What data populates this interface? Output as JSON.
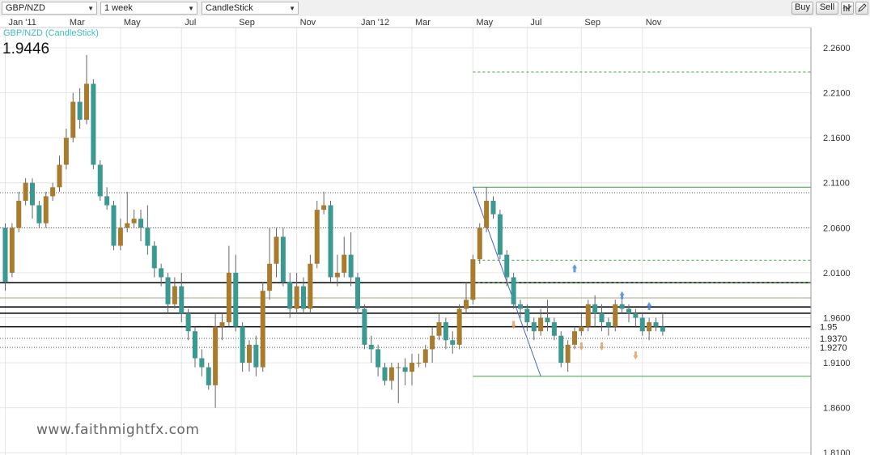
{
  "toolbar": {
    "symbol": "GBP/NZD",
    "period": "1 week",
    "chart_type": "CandleStick",
    "buy_label": "Buy",
    "sell_label": "Sell",
    "indicator_icon": "indicator-icon",
    "draw_icon": "pencil-icon"
  },
  "legend": {
    "series_label": "GBP/NZD (CandleStick)",
    "last_price": "1.9446"
  },
  "watermark": "www.faithmightfx.com",
  "colors": {
    "bull": "#a87c2c",
    "bear": "#3a9a92",
    "legend": "#3bbcc2",
    "grid": "#e6e6e6"
  },
  "chart_data": {
    "type": "candlestick",
    "title": "GBP/NZD (CandleStick)",
    "xlabel": "",
    "ylabel": "",
    "timeframe": "1 week",
    "ylim": [
      1.8075,
      2.2825
    ],
    "y_ticks": [
      "2.2600",
      "2.2100",
      "2.1600",
      "2.1100",
      "2.0600",
      "2.0100",
      "1.9600",
      "1.9100",
      "1.8600",
      "1.8100"
    ],
    "x_tick_labels": [
      "Jan '11",
      "Mar",
      "May",
      "Jul",
      "Sep",
      "Nov",
      "Jan '12",
      "Mar",
      "May",
      "Jul",
      "Sep",
      "Nov"
    ],
    "x_tick_candle_index": [
      0,
      9,
      17,
      26,
      34,
      43,
      52,
      60,
      69,
      77,
      85,
      94
    ],
    "level_labels": [
      "1.95",
      "1.9370",
      "1.9270"
    ],
    "horizontal_levels": [
      {
        "price": 2.099,
        "style": "dotted",
        "color": "#555555"
      },
      {
        "price": 2.06,
        "style": "dotted",
        "color": "#555555"
      },
      {
        "price": 1.999,
        "style": "solid",
        "color": "#000000"
      },
      {
        "price": 1.982,
        "style": "solid",
        "color": "#c8c0a8"
      },
      {
        "price": 1.972,
        "style": "solid",
        "color": "#000000"
      },
      {
        "price": 1.965,
        "style": "solid",
        "color": "#000000"
      },
      {
        "price": 1.95,
        "style": "solid",
        "color": "#000000"
      },
      {
        "price": 1.937,
        "style": "dotted",
        "color": "#555555"
      },
      {
        "price": 1.927,
        "style": "dotted",
        "color": "#555555"
      }
    ],
    "fib_lines": [
      {
        "price": 2.233,
        "style": "dashed",
        "color": "#33aa33"
      },
      {
        "price": 2.105,
        "style": "solid",
        "color": "#33aa33"
      },
      {
        "price": 2.024,
        "style": "dashed",
        "color": "#33aa33"
      },
      {
        "price": 1.999,
        "style": "dashed",
        "color": "#33aa33"
      },
      {
        "price": 1.895,
        "style": "solid",
        "color": "#33aa33"
      }
    ],
    "trendline": {
      "from_index": 69,
      "from_price": 2.105,
      "to_index": 79,
      "to_price": 1.895,
      "color": "#4466cc"
    },
    "arrow_markers": [
      {
        "index": 84,
        "price": 2.015,
        "direction": "up",
        "color": "#4488dd"
      },
      {
        "index": 91,
        "price": 1.985,
        "direction": "up",
        "color": "#4488dd"
      },
      {
        "index": 95,
        "price": 1.973,
        "direction": "up",
        "color": "#4488dd"
      },
      {
        "index": 75,
        "price": 1.952,
        "direction": "down",
        "color": "#e0a060"
      },
      {
        "index": 85,
        "price": 1.928,
        "direction": "down",
        "color": "#e0a060"
      },
      {
        "index": 88,
        "price": 1.928,
        "direction": "down",
        "color": "#e0a060"
      },
      {
        "index": 93,
        "price": 1.918,
        "direction": "down",
        "color": "#e0a060"
      }
    ],
    "candles": [
      [
        2.06,
        2.0,
        2.065,
        1.99
      ],
      [
        2.01,
        2.06,
        2.065,
        2.005
      ],
      [
        2.06,
        2.09,
        2.1,
        2.055
      ],
      [
        2.09,
        2.11,
        2.115,
        2.085
      ],
      [
        2.11,
        2.085,
        2.115,
        2.07
      ],
      [
        2.085,
        2.065,
        2.09,
        2.06
      ],
      [
        2.065,
        2.095,
        2.1,
        2.06
      ],
      [
        2.095,
        2.105,
        2.11,
        2.09
      ],
      [
        2.105,
        2.13,
        2.14,
        2.1
      ],
      [
        2.13,
        2.16,
        2.17,
        2.125
      ],
      [
        2.16,
        2.2,
        2.21,
        2.155
      ],
      [
        2.2,
        2.18,
        2.215,
        2.17
      ],
      [
        2.18,
        2.22,
        2.252,
        2.175
      ],
      [
        2.22,
        2.13,
        2.225,
        2.125
      ],
      [
        2.13,
        2.095,
        2.135,
        2.09
      ],
      [
        2.095,
        2.085,
        2.105,
        2.08
      ],
      [
        2.085,
        2.04,
        2.09,
        2.035
      ],
      [
        2.04,
        2.06,
        2.07,
        2.035
      ],
      [
        2.06,
        2.065,
        2.1,
        2.055
      ],
      [
        2.065,
        2.07,
        2.08,
        2.06
      ],
      [
        2.07,
        2.06,
        2.08,
        2.045
      ],
      [
        2.06,
        2.04,
        2.085,
        2.03
      ],
      [
        2.04,
        2.015,
        2.045,
        2.005
      ],
      [
        2.015,
        2.005,
        2.02,
        1.995
      ],
      [
        2.005,
        1.975,
        2.01,
        1.965
      ],
      [
        1.975,
        1.995,
        2.005,
        1.97
      ],
      [
        1.995,
        1.965,
        2.01,
        1.955
      ],
      [
        1.965,
        1.945,
        1.97,
        1.935
      ],
      [
        1.945,
        1.915,
        1.95,
        1.905
      ],
      [
        1.915,
        1.905,
        1.925,
        1.895
      ],
      [
        1.905,
        1.885,
        1.91,
        1.88
      ],
      [
        1.885,
        1.95,
        1.965,
        1.86
      ],
      [
        1.95,
        1.955,
        1.965,
        1.935
      ],
      [
        1.955,
        2.01,
        2.04,
        1.95
      ],
      [
        2.01,
        1.95,
        2.03,
        1.945
      ],
      [
        1.95,
        1.91,
        1.955,
        1.9
      ],
      [
        1.91,
        1.93,
        1.935,
        1.9
      ],
      [
        1.93,
        1.905,
        1.94,
        1.895
      ],
      [
        1.905,
        1.99,
        2.0,
        1.9
      ],
      [
        1.99,
        2.02,
        2.06,
        1.98
      ],
      [
        2.02,
        2.05,
        2.06,
        2.005
      ],
      [
        2.05,
        2.0,
        2.06,
        1.995
      ],
      [
        2.0,
        1.97,
        2.01,
        1.96
      ],
      [
        1.97,
        1.995,
        2.01,
        1.965
      ],
      [
        1.995,
        1.97,
        2.005,
        1.965
      ],
      [
        1.97,
        2.02,
        2.03,
        1.965
      ],
      [
        2.02,
        2.08,
        2.09,
        2.015
      ],
      [
        2.08,
        2.085,
        2.1,
        2.075
      ],
      [
        2.085,
        2.005,
        2.09,
        2.0
      ],
      [
        2.005,
        2.01,
        2.03,
        1.995
      ],
      [
        2.01,
        2.03,
        2.05,
        2.005
      ],
      [
        2.03,
        2.005,
        2.055,
        1.995
      ],
      [
        2.005,
        1.97,
        2.01,
        1.965
      ],
      [
        1.97,
        1.93,
        1.975,
        1.925
      ],
      [
        1.93,
        1.925,
        1.94,
        1.91
      ],
      [
        1.925,
        1.905,
        1.93,
        1.895
      ],
      [
        1.905,
        1.89,
        1.91,
        1.885
      ],
      [
        1.89,
        1.905,
        1.91,
        1.88
      ],
      [
        1.905,
        1.905,
        1.91,
        1.865
      ],
      [
        1.905,
        1.9,
        1.915,
        1.885
      ],
      [
        1.9,
        1.91,
        1.92,
        1.885
      ],
      [
        1.91,
        1.91,
        1.92,
        1.905
      ],
      [
        1.91,
        1.925,
        1.93,
        1.905
      ],
      [
        1.925,
        1.94,
        1.95,
        1.91
      ],
      [
        1.94,
        1.955,
        1.965,
        1.935
      ],
      [
        1.955,
        1.935,
        1.96,
        1.925
      ],
      [
        1.935,
        1.93,
        1.945,
        1.92
      ],
      [
        1.93,
        1.97,
        1.975,
        1.925
      ],
      [
        1.97,
        1.98,
        2.0,
        1.965
      ],
      [
        1.98,
        2.025,
        2.03,
        1.975
      ],
      [
        2.025,
        2.06,
        2.065,
        2.02
      ],
      [
        2.06,
        2.09,
        2.105,
        2.055
      ],
      [
        2.09,
        2.075,
        2.095,
        2.07
      ],
      [
        2.075,
        2.03,
        2.08,
        2.025
      ],
      [
        2.03,
        2.005,
        2.035,
        1.995
      ],
      [
        2.005,
        1.975,
        2.01,
        1.97
      ],
      [
        1.975,
        1.97,
        1.98,
        1.96
      ],
      [
        1.97,
        1.955,
        1.975,
        1.945
      ],
      [
        1.955,
        1.945,
        1.96,
        1.935
      ],
      [
        1.945,
        1.96,
        1.97,
        1.94
      ],
      [
        1.96,
        1.955,
        1.98,
        1.945
      ],
      [
        1.955,
        1.94,
        1.96,
        1.935
      ],
      [
        1.94,
        1.91,
        1.945,
        1.905
      ],
      [
        1.91,
        1.93,
        1.935,
        1.9
      ],
      [
        1.93,
        1.945,
        1.95,
        1.925
      ],
      [
        1.945,
        1.95,
        1.965,
        1.94
      ],
      [
        1.95,
        1.975,
        1.98,
        1.945
      ],
      [
        1.975,
        1.965,
        1.985,
        1.95
      ],
      [
        1.965,
        1.955,
        1.975,
        1.945
      ],
      [
        1.955,
        1.95,
        1.96,
        1.94
      ],
      [
        1.95,
        1.975,
        1.98,
        1.945
      ],
      [
        1.975,
        1.97,
        1.98,
        1.965
      ],
      [
        1.97,
        1.965,
        1.975,
        1.955
      ],
      [
        1.965,
        1.96,
        1.97,
        1.95
      ],
      [
        1.96,
        1.945,
        1.965,
        1.94
      ],
      [
        1.945,
        1.955,
        1.96,
        1.935
      ],
      [
        1.955,
        1.95,
        1.96,
        1.945
      ],
      [
        1.95,
        1.9446,
        1.965,
        1.94
      ]
    ]
  }
}
